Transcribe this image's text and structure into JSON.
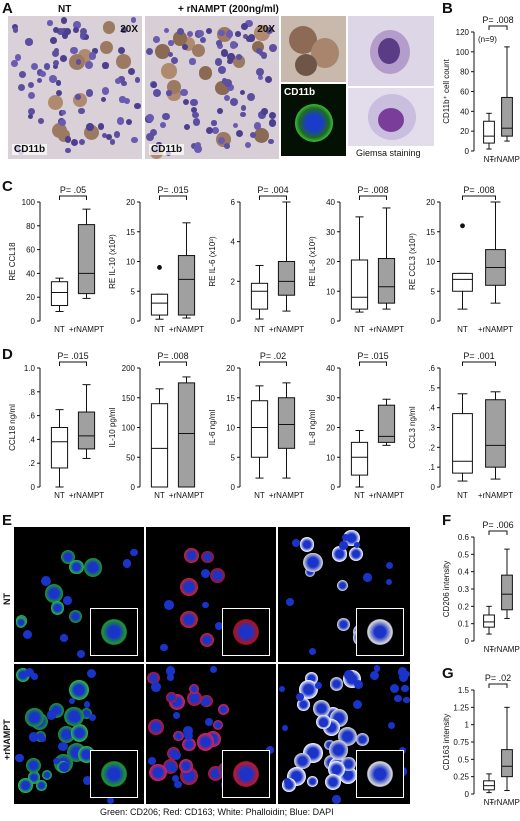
{
  "panels": {
    "A": "A",
    "B": "B",
    "C": "C",
    "D": "D",
    "E": "E",
    "F": "F",
    "G": "G"
  },
  "panelA": {
    "nt_title": "NT",
    "rnampt_title": "+ rNAMPT (200ng/ml)",
    "mag1": "20X",
    "mag2": "20X",
    "cd11b_1": "CD11b",
    "cd11b_2": "CD11b",
    "cd11b_fluor": "CD11b",
    "giemsa": "Giemsa staining"
  },
  "panelE": {
    "nt_label": "NT",
    "rnampt_label": "+rNAMPT",
    "legend": "Green: CD206; Red: CD163; White: Phalloidin; Blue: DAPI"
  },
  "colors": {
    "box_nt": "#ffffff",
    "box_rnampt": "#a0a0a0",
    "stroke": "#111111"
  },
  "chart_data": [
    {
      "id": "B",
      "type": "box",
      "ylabel": "CD11b⁺ cell count",
      "ylim": [
        0,
        120
      ],
      "yticks": [
        "0",
        "20",
        "40",
        "60",
        "80",
        "100",
        "120"
      ],
      "yticks_val": [
        0,
        20,
        40,
        60,
        80,
        100,
        120
      ],
      "categories": [
        "NT",
        "+rNAMPT"
      ],
      "boxes": [
        {
          "min": 2,
          "q1": 8,
          "median": 15,
          "q3": 30,
          "max": 38
        },
        {
          "min": 10,
          "q1": 15,
          "median": 23,
          "q3": 54,
          "max": 105
        }
      ],
      "outliers": [
        [],
        []
      ],
      "pvalue": "P= .008",
      "note": "(n=9)"
    },
    {
      "id": "C1",
      "type": "box",
      "ylabel": "RE CCL18",
      "ylim": [
        0,
        100
      ],
      "yticks": [
        "0",
        "20",
        "40",
        "60",
        "80",
        "100"
      ],
      "yticks_val": [
        0,
        20,
        40,
        60,
        80,
        100
      ],
      "categories": [
        "NT",
        "+rNAMPT"
      ],
      "boxes": [
        {
          "min": 8,
          "q1": 13,
          "median": 24,
          "q3": 33,
          "max": 36
        },
        {
          "min": 19,
          "q1": 23,
          "median": 40,
          "q3": 81,
          "max": 94
        }
      ],
      "outliers": [
        [],
        []
      ],
      "pvalue": "P= .05"
    },
    {
      "id": "C2",
      "type": "box",
      "ylabel": "RE IL-10 (x10²)",
      "ylim": [
        0,
        20
      ],
      "yticks": [
        "0",
        "5",
        "10",
        "15",
        "20"
      ],
      "yticks_val": [
        0,
        5,
        10,
        15,
        20
      ],
      "categories": [
        "NT",
        "+rNAMPT"
      ],
      "boxes": [
        {
          "min": 0.3,
          "q1": 1.0,
          "median": 3.0,
          "q3": 4.5,
          "max": 4.5
        },
        {
          "min": 0.5,
          "q1": 1.0,
          "median": 7.0,
          "q3": 11.0,
          "max": 16.5
        }
      ],
      "outliers": [
        [
          9
        ],
        []
      ],
      "pvalue": "P= .015"
    },
    {
      "id": "C3",
      "type": "box",
      "ylabel": "RE IL-6 (x10³)",
      "ylim": [
        0,
        6
      ],
      "yticks": [
        "0",
        "2",
        "4",
        "6"
      ],
      "yticks_val": [
        0,
        2,
        4,
        6
      ],
      "categories": [
        "NT",
        "+rNAMPT"
      ],
      "boxes": [
        {
          "min": 0.1,
          "q1": 0.6,
          "median": 1.5,
          "q3": 1.9,
          "max": 2.8
        },
        {
          "min": 0.5,
          "q1": 1.3,
          "median": 2.0,
          "q3": 3.0,
          "max": 6.0
        }
      ],
      "outliers": [
        [],
        []
      ],
      "pvalue": "P= .004"
    },
    {
      "id": "C4",
      "type": "box",
      "ylabel": "RE IL-8 (x10³)",
      "ylim": [
        0,
        40
      ],
      "yticks": [
        "0",
        "10",
        "20",
        "30",
        "40"
      ],
      "yticks_val": [
        0,
        10,
        20,
        30,
        40
      ],
      "categories": [
        "NT",
        "+rNAMPT"
      ],
      "boxes": [
        {
          "min": 3,
          "q1": 4,
          "median": 8,
          "q3": 20.5,
          "max": 35
        },
        {
          "min": 4,
          "q1": 6,
          "median": 11.5,
          "q3": 21,
          "max": 38
        }
      ],
      "outliers": [
        [],
        []
      ],
      "pvalue": "P= .008"
    },
    {
      "id": "C5",
      "type": "box",
      "ylabel": "RE CCL3 (x10³)",
      "ylim": [
        0,
        20
      ],
      "yticks": [
        "0",
        "5",
        "10",
        "15",
        "20"
      ],
      "yticks_val": [
        0,
        5,
        10,
        15,
        20
      ],
      "categories": [
        "NT",
        "+rNAMPT"
      ],
      "boxes": [
        {
          "min": 2,
          "q1": 5,
          "median": 7,
          "q3": 8,
          "max": 8
        },
        {
          "min": 3,
          "q1": 6,
          "median": 9,
          "q3": 12,
          "max": 20
        }
      ],
      "outliers": [
        [
          16
        ],
        []
      ],
      "pvalue": "P= .008"
    },
    {
      "id": "D1",
      "type": "box",
      "ylabel": "CCL18 ng/ml",
      "ylim": [
        0,
        1.0
      ],
      "yticks": [
        "0",
        ".2",
        ".4",
        ".6",
        ".8",
        "1.0"
      ],
      "yticks_val": [
        0,
        0.2,
        0.4,
        0.6,
        0.8,
        1.0
      ],
      "categories": [
        "NT",
        "+rNAMPT"
      ],
      "boxes": [
        {
          "min": 0.0,
          "q1": 0.16,
          "median": 0.38,
          "q3": 0.5,
          "max": 0.65
        },
        {
          "min": 0.24,
          "q1": 0.32,
          "median": 0.43,
          "q3": 0.63,
          "max": 0.86
        }
      ],
      "outliers": [
        [],
        []
      ],
      "pvalue": "P= .015"
    },
    {
      "id": "D2",
      "type": "box",
      "ylabel": "IL-10 pg/ml",
      "ylim": [
        0,
        200
      ],
      "yticks": [
        "0",
        "50",
        "100",
        "150",
        "200"
      ],
      "yticks_val": [
        0,
        50,
        100,
        150,
        200
      ],
      "categories": [
        "NT",
        "+rNAMPT"
      ],
      "boxes": [
        {
          "min": 0,
          "q1": 0,
          "median": 65,
          "q3": 140,
          "max": 165
        },
        {
          "min": 0,
          "q1": 0,
          "median": 90,
          "q3": 175,
          "max": 185
        }
      ],
      "outliers": [
        [],
        []
      ],
      "pvalue": "P= .008"
    },
    {
      "id": "D3",
      "type": "box",
      "ylabel": "IL-6 ng/ml",
      "ylim": [
        0,
        20
      ],
      "yticks": [
        "0",
        "5",
        "10",
        "15",
        "20"
      ],
      "yticks_val": [
        0,
        5,
        10,
        15,
        20
      ],
      "categories": [
        "NT",
        "+rNAMPT"
      ],
      "boxes": [
        {
          "min": 1.5,
          "q1": 5,
          "median": 10,
          "q3": 14.5,
          "max": 17
        },
        {
          "min": 1.5,
          "q1": 6.5,
          "median": 10.5,
          "q3": 15,
          "max": 17.5
        }
      ],
      "outliers": [
        [],
        []
      ],
      "pvalue": "P= .02"
    },
    {
      "id": "D4",
      "type": "box",
      "ylabel": "IL-8 ng/ml",
      "ylim": [
        0,
        40
      ],
      "yticks": [
        "0",
        "10",
        "20",
        "30",
        "40"
      ],
      "yticks_val": [
        0,
        10,
        20,
        30,
        40
      ],
      "categories": [
        "NT",
        "+rNAMPT"
      ],
      "boxes": [
        {
          "min": 0,
          "q1": 4,
          "median": 10,
          "q3": 15,
          "max": 19
        },
        {
          "min": 14,
          "q1": 15,
          "median": 17,
          "q3": 27.5,
          "max": 29.5
        }
      ],
      "outliers": [
        [],
        []
      ],
      "pvalue": "P= .015"
    },
    {
      "id": "D5",
      "type": "box",
      "ylabel": "CCL3 ng/ml",
      "ylim": [
        0,
        0.6
      ],
      "yticks": [
        "0",
        ".1",
        ".2",
        ".3",
        ".4",
        ".5",
        ".6"
      ],
      "yticks_val": [
        0,
        0.1,
        0.2,
        0.3,
        0.4,
        0.5,
        0.6
      ],
      "categories": [
        "NT",
        "+rNAMPT"
      ],
      "boxes": [
        {
          "min": 0.03,
          "q1": 0.07,
          "median": 0.13,
          "q3": 0.37,
          "max": 0.47
        },
        {
          "min": 0.04,
          "q1": 0.1,
          "median": 0.21,
          "q3": 0.44,
          "max": 0.48
        }
      ],
      "outliers": [
        [],
        []
      ],
      "pvalue": "P= .001"
    },
    {
      "id": "F",
      "type": "box",
      "ylabel": "CD206 intensity",
      "ylim": [
        0,
        0.6
      ],
      "yticks": [
        "0",
        "0.1",
        "0.2",
        "0.3",
        "0.4",
        "0.5",
        "0.6"
      ],
      "yticks_val": [
        0,
        0.1,
        0.2,
        0.3,
        0.4,
        0.5,
        0.6
      ],
      "categories": [
        "NT",
        "+rNAMPT"
      ],
      "boxes": [
        {
          "min": 0.04,
          "q1": 0.08,
          "median": 0.11,
          "q3": 0.15,
          "max": 0.2
        },
        {
          "min": 0.13,
          "q1": 0.18,
          "median": 0.27,
          "q3": 0.38,
          "max": 0.53
        }
      ],
      "outliers": [
        [],
        []
      ],
      "pvalue": "P= .006"
    },
    {
      "id": "G",
      "type": "box",
      "ylabel": "CD163 intensity",
      "ylim": [
        0,
        1.5
      ],
      "yticks": [
        "0",
        "0.25",
        "0.5",
        "0.75",
        "1",
        "1.25",
        "1.5"
      ],
      "yticks_val": [
        0,
        0.25,
        0.5,
        0.75,
        1,
        1.25,
        1.5
      ],
      "categories": [
        "NT",
        "+rNAMPT"
      ],
      "boxes": [
        {
          "min": 0.02,
          "q1": 0.06,
          "median": 0.12,
          "q3": 0.19,
          "max": 0.29
        },
        {
          "min": 0.05,
          "q1": 0.25,
          "median": 0.4,
          "q3": 0.64,
          "max": 1.25
        }
      ],
      "outliers": [
        [],
        []
      ],
      "pvalue": "P= .02"
    }
  ]
}
